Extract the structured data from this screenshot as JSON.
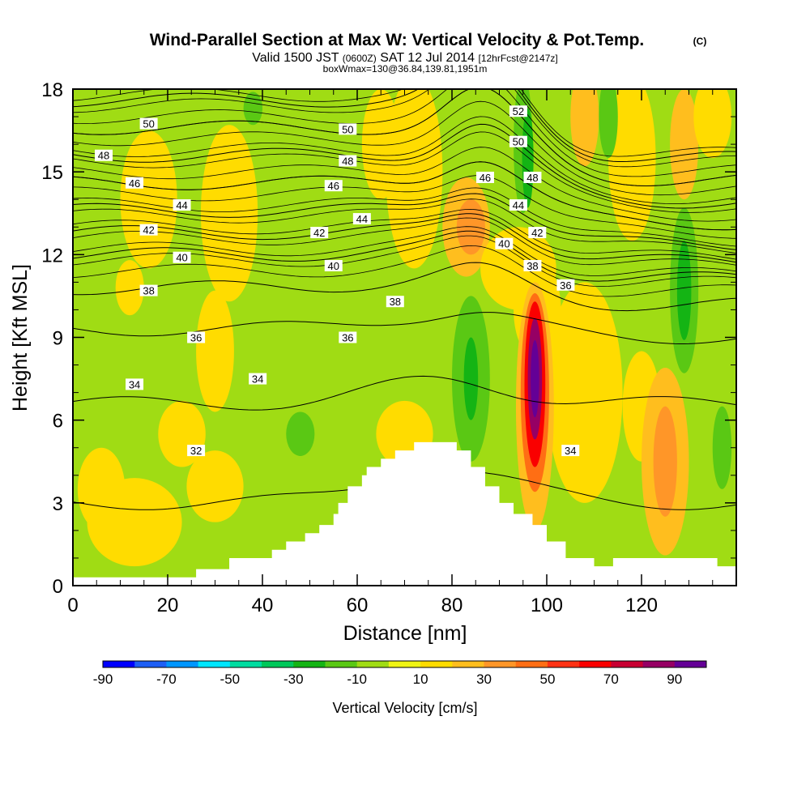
{
  "title": "Wind-Parallel Section at Max W: Vertical Velocity & Pot.Temp.",
  "title_mark": "(C)",
  "subtitle": {
    "valid": "Valid 1500 JST",
    "utc": "(0600Z)",
    "date": "SAT 12 Jul 2014",
    "fcst": "[12hrFcst@2147z]"
  },
  "box_info": "boxWmax=130@36.84,139.81,1951m",
  "chart_data": {
    "type": "heatmap",
    "xlabel": "Distance [nm]",
    "ylabel": "Height [Kft MSL]",
    "xlim": [
      0,
      140
    ],
    "ylim": [
      0,
      18
    ],
    "xticks": [
      "0",
      "20",
      "40",
      "60",
      "80",
      "100",
      "120"
    ],
    "yticks": [
      "0",
      "3",
      "6",
      "9",
      "12",
      "15",
      "18"
    ],
    "colorbar": {
      "label": "Vertical Velocity [cm/s]",
      "range": [
        -90,
        100
      ],
      "step": 10,
      "tick_labels": [
        "-90",
        "-70",
        "-50",
        "-30",
        "-10",
        "10",
        "30",
        "50",
        "70",
        "90"
      ],
      "colors": [
        "#0000ff",
        "#1e5ff5",
        "#0096ff",
        "#00e6ff",
        "#00dca0",
        "#00c85a",
        "#14b414",
        "#5ac814",
        "#a0dc14",
        "#f0f514",
        "#ffdc00",
        "#ffbe1e",
        "#ff9628",
        "#ff6e14",
        "#ff3214",
        "#fa0000",
        "#c80032",
        "#960064",
        "#640096"
      ]
    },
    "background_value": -10,
    "terrain": [
      {
        "x": 0,
        "h": 0.3
      },
      {
        "x": 26,
        "h": 0.3
      },
      {
        "x": 26,
        "h": 0.6
      },
      {
        "x": 33,
        "h": 0.6
      },
      {
        "x": 33,
        "h": 1.0
      },
      {
        "x": 42,
        "h": 1.0
      },
      {
        "x": 42,
        "h": 1.3
      },
      {
        "x": 45,
        "h": 1.3
      },
      {
        "x": 45,
        "h": 1.6
      },
      {
        "x": 49,
        "h": 1.6
      },
      {
        "x": 49,
        "h": 1.9
      },
      {
        "x": 52,
        "h": 1.9
      },
      {
        "x": 52,
        "h": 2.2
      },
      {
        "x": 55,
        "h": 2.2
      },
      {
        "x": 55,
        "h": 2.6
      },
      {
        "x": 56,
        "h": 2.6
      },
      {
        "x": 56,
        "h": 3.0
      },
      {
        "x": 58,
        "h": 3.0
      },
      {
        "x": 58,
        "h": 3.6
      },
      {
        "x": 61,
        "h": 3.6
      },
      {
        "x": 61,
        "h": 4.0
      },
      {
        "x": 62,
        "h": 4.0
      },
      {
        "x": 62,
        "h": 4.3
      },
      {
        "x": 65,
        "h": 4.3
      },
      {
        "x": 65,
        "h": 4.6
      },
      {
        "x": 68,
        "h": 4.6
      },
      {
        "x": 68,
        "h": 4.9
      },
      {
        "x": 72,
        "h": 4.9
      },
      {
        "x": 72,
        "h": 5.2
      },
      {
        "x": 81,
        "h": 5.2
      },
      {
        "x": 81,
        "h": 4.9
      },
      {
        "x": 84,
        "h": 4.9
      },
      {
        "x": 84,
        "h": 4.3
      },
      {
        "x": 87,
        "h": 4.3
      },
      {
        "x": 87,
        "h": 3.6
      },
      {
        "x": 90,
        "h": 3.6
      },
      {
        "x": 90,
        "h": 3.0
      },
      {
        "x": 93,
        "h": 3.0
      },
      {
        "x": 93,
        "h": 2.6
      },
      {
        "x": 97,
        "h": 2.6
      },
      {
        "x": 97,
        "h": 2.2
      },
      {
        "x": 100,
        "h": 2.2
      },
      {
        "x": 100,
        "h": 1.6
      },
      {
        "x": 104,
        "h": 1.6
      },
      {
        "x": 104,
        "h": 1.0
      },
      {
        "x": 110,
        "h": 1.0
      },
      {
        "x": 110,
        "h": 0.7
      },
      {
        "x": 114,
        "h": 0.7
      },
      {
        "x": 114,
        "h": 1.0
      },
      {
        "x": 136,
        "h": 1.0
      },
      {
        "x": 136,
        "h": 0.7
      },
      {
        "x": 140,
        "h": 0.7
      }
    ],
    "features": [
      {
        "x": 13,
        "y": 2.3,
        "rx": 10,
        "ry": 1.6,
        "value": 12
      },
      {
        "x": 30,
        "y": 3.6,
        "rx": 6,
        "ry": 1.3,
        "value": 12
      },
      {
        "x": 6,
        "y": 3.5,
        "rx": 5,
        "ry": 1.5,
        "value": 10
      },
      {
        "x": 33,
        "y": 13.5,
        "rx": 6,
        "ry": 3.2,
        "value": 10
      },
      {
        "x": 30,
        "y": 8.5,
        "rx": 4,
        "ry": 2.2,
        "value": 12
      },
      {
        "x": 23,
        "y": 5.5,
        "rx": 5,
        "ry": 1.2,
        "value": 12
      },
      {
        "x": 16,
        "y": 14.0,
        "rx": 6,
        "ry": 2.5,
        "value": 12
      },
      {
        "x": 12,
        "y": 10.8,
        "rx": 3,
        "ry": 1.0,
        "value": 12
      },
      {
        "x": 65,
        "y": 16.0,
        "rx": 4,
        "ry": 2.0,
        "value": 12
      },
      {
        "x": 72,
        "y": 15.0,
        "rx": 6,
        "ry": 3.5,
        "value": 12
      },
      {
        "x": 70,
        "y": 5.5,
        "rx": 6,
        "ry": 1.2,
        "value": 12
      },
      {
        "x": 83,
        "y": 13.0,
        "rx": 5,
        "ry": 1.8,
        "value": 25
      },
      {
        "x": 84,
        "y": 13.0,
        "rx": 3,
        "ry": 1.0,
        "value": 35
      },
      {
        "x": 94,
        "y": 11.5,
        "rx": 8,
        "ry": 1.5,
        "value": 12
      },
      {
        "x": 108,
        "y": 17.0,
        "rx": 3,
        "ry": 1.8,
        "value": 25
      },
      {
        "x": 108,
        "y": 7.0,
        "rx": 8,
        "ry": 4.0,
        "value": 10
      },
      {
        "x": 120,
        "y": 6.5,
        "rx": 4,
        "ry": 2.0,
        "value": 12
      },
      {
        "x": 118,
        "y": 15.5,
        "rx": 5,
        "ry": 3.0,
        "value": 12
      },
      {
        "x": 125,
        "y": 4.5,
        "rx": 5,
        "ry": 3.4,
        "value": 20
      },
      {
        "x": 125,
        "y": 4.5,
        "rx": 2.5,
        "ry": 2.0,
        "value": 35
      },
      {
        "x": 129,
        "y": 16.0,
        "rx": 3,
        "ry": 2.0,
        "value": 20
      },
      {
        "x": 135,
        "y": 17.0,
        "rx": 4,
        "ry": 1.5,
        "value": 12
      },
      {
        "x": 98,
        "y": 9.5,
        "rx": 3,
        "ry": 1.0,
        "value": 25
      },
      {
        "x": 98,
        "y": 10.0,
        "rx": 5,
        "ry": 1.8,
        "value": 12
      },
      {
        "x": 95,
        "y": 16.0,
        "rx": 2,
        "ry": 2.5,
        "value": -15
      },
      {
        "x": 96,
        "y": 15.5,
        "rx": 1.2,
        "ry": 1.8,
        "value": -25
      },
      {
        "x": 113,
        "y": 17.0,
        "rx": 2,
        "ry": 1.5,
        "value": -20
      },
      {
        "x": 129,
        "y": 10.7,
        "rx": 3,
        "ry": 3.0,
        "value": -15
      },
      {
        "x": 129,
        "y": 10.7,
        "rx": 1.5,
        "ry": 1.8,
        "value": -30
      },
      {
        "x": 48,
        "y": 5.5,
        "rx": 3,
        "ry": 0.8,
        "value": -20
      },
      {
        "x": 38,
        "y": 17.3,
        "rx": 2,
        "ry": 0.6,
        "value": -20
      },
      {
        "x": 84,
        "y": 7.5,
        "rx": 4,
        "ry": 3.0,
        "value": -20
      },
      {
        "x": 84,
        "y": 7.5,
        "rx": 1.5,
        "ry": 1.5,
        "value": -30
      },
      {
        "x": 137,
        "y": 5.0,
        "rx": 2,
        "ry": 1.5,
        "value": -20
      },
      {
        "x": 97.5,
        "y": 6.5,
        "rx": 4,
        "ry": 4.5,
        "value": 25
      },
      {
        "x": 97.5,
        "y": 7.0,
        "rx": 3,
        "ry": 3.6,
        "value": 45
      },
      {
        "x": 97.5,
        "y": 7.3,
        "rx": 2.2,
        "ry": 3.0,
        "value": 65
      },
      {
        "x": 97.5,
        "y": 7.5,
        "rx": 1.5,
        "ry": 2.2,
        "value": 85
      },
      {
        "x": 97.5,
        "y": 7.5,
        "rx": 0.9,
        "ry": 1.4,
        "value": 95
      }
    ],
    "isentropes": [
      {
        "level": "32",
        "y0": 3.0
      },
      {
        "level": "34",
        "y0": 6.6
      },
      {
        "level": "36",
        "y0": 9.3
      },
      {
        "level": "38",
        "y0": 10.8
      },
      {
        "level": "40",
        "y0": 12.0
      },
      {
        "level": "42",
        "y0": 12.8
      },
      {
        "level": "44",
        "y0": 13.6
      },
      {
        "level": "46",
        "y0": 14.6
      },
      {
        "level": "48",
        "y0": 15.6
      },
      {
        "level": "50",
        "y0": 16.6
      },
      {
        "level": "52",
        "y0": 17.6
      }
    ],
    "isentrope_labels": [
      {
        "text": "50",
        "x": 16,
        "y": 16.75
      },
      {
        "text": "50",
        "x": 58,
        "y": 16.55
      },
      {
        "text": "52",
        "x": 94,
        "y": 17.2
      },
      {
        "text": "50",
        "x": 94,
        "y": 16.1
      },
      {
        "text": "48",
        "x": 6.5,
        "y": 15.6
      },
      {
        "text": "48",
        "x": 58,
        "y": 15.4
      },
      {
        "text": "48",
        "x": 97,
        "y": 14.8
      },
      {
        "text": "46",
        "x": 13,
        "y": 14.6
      },
      {
        "text": "46",
        "x": 55,
        "y": 14.5
      },
      {
        "text": "46",
        "x": 87,
        "y": 14.8
      },
      {
        "text": "44",
        "x": 23,
        "y": 13.8
      },
      {
        "text": "44",
        "x": 61,
        "y": 13.3
      },
      {
        "text": "44",
        "x": 94,
        "y": 13.8
      },
      {
        "text": "42",
        "x": 16,
        "y": 12.9
      },
      {
        "text": "42",
        "x": 52,
        "y": 12.8
      },
      {
        "text": "42",
        "x": 98,
        "y": 12.8
      },
      {
        "text": "40",
        "x": 23,
        "y": 11.9
      },
      {
        "text": "40",
        "x": 55,
        "y": 11.6
      },
      {
        "text": "40",
        "x": 91,
        "y": 12.4
      },
      {
        "text": "38",
        "x": 16,
        "y": 10.7
      },
      {
        "text": "38",
        "x": 68,
        "y": 10.3
      },
      {
        "text": "38",
        "x": 97,
        "y": 11.6
      },
      {
        "text": "36",
        "x": 26,
        "y": 9.0
      },
      {
        "text": "36",
        "x": 58,
        "y": 9.0
      },
      {
        "text": "36",
        "x": 104,
        "y": 10.9
      },
      {
        "text": "34",
        "x": 13,
        "y": 7.3
      },
      {
        "text": "34",
        "x": 39,
        "y": 7.5
      },
      {
        "text": "34",
        "x": 105,
        "y": 4.9
      },
      {
        "text": "32",
        "x": 26,
        "y": 4.9
      }
    ]
  }
}
